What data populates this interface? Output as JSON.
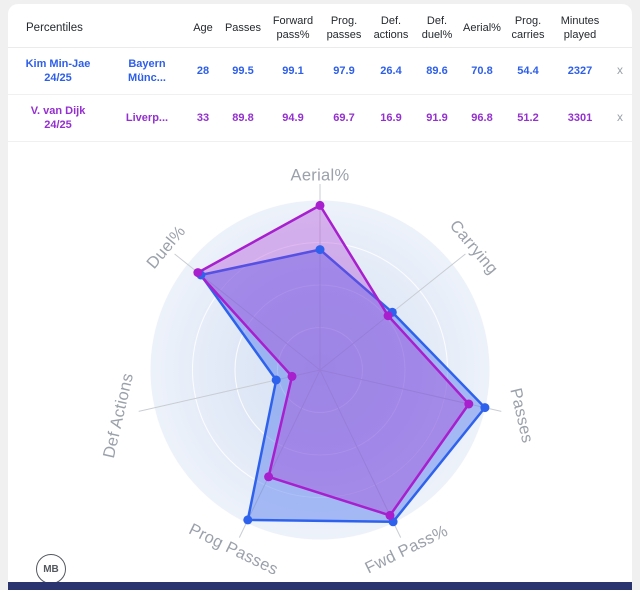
{
  "page": {
    "background": "#f0f0f1",
    "card_background": "#ffffff",
    "bottom_bar_color": "#2a346f"
  },
  "table": {
    "header": {
      "percentiles": "Percentiles",
      "columns": [
        "Age",
        "Passes",
        "Forward pass%",
        "Prog. passes",
        "Def. actions",
        "Def. duel%",
        "Aerial%",
        "Prog. carries",
        "Minutes played"
      ]
    },
    "rows": [
      {
        "name": "Kim Min-Jae",
        "season": "24/25",
        "team": "Bayern Münc...",
        "color": "#2e5fe8",
        "values": [
          "28",
          "99.5",
          "99.1",
          "97.9",
          "26.4",
          "89.6",
          "70.8",
          "54.4",
          "2327"
        ],
        "remove_label": "x"
      },
      {
        "name": "V. van Dijk",
        "season": "24/25",
        "team": "Liverp...",
        "color": "#9430cf",
        "values": [
          "33",
          "89.8",
          "94.9",
          "69.7",
          "16.9",
          "91.9",
          "96.8",
          "51.2",
          "3301"
        ],
        "remove_label": "x"
      }
    ]
  },
  "chart_data": {
    "type": "radar",
    "axes": [
      "Aerial%",
      "Carrying",
      "Passes",
      "Fwd Pass%",
      "Prog Passes",
      "Def Actions",
      "Duel%"
    ],
    "range": [
      0,
      100
    ],
    "series": [
      {
        "name": "Kim Min-Jae 24/25",
        "color": "#2f62ec",
        "fill": "rgba(77,118,238,0.45)",
        "values": [
          70.8,
          54.4,
          99.5,
          99.1,
          97.9,
          26.4,
          89.6
        ]
      },
      {
        "name": "V. van Dijk 24/25",
        "color": "#a81fce",
        "fill": "rgba(168,45,208,0.33)",
        "values": [
          96.8,
          51.2,
          89.8,
          94.9,
          69.7,
          16.9,
          91.9
        ]
      }
    ],
    "label_rotations": [
      0,
      50,
      77,
      -26,
      26,
      -77,
      -50
    ],
    "grid": "circular",
    "axis_label_color": "#9ba1ab",
    "background_gradient": [
      "#d5e1f3",
      "#e1e9f7",
      "#edf2fa"
    ]
  },
  "logo": {
    "text": "MB"
  }
}
